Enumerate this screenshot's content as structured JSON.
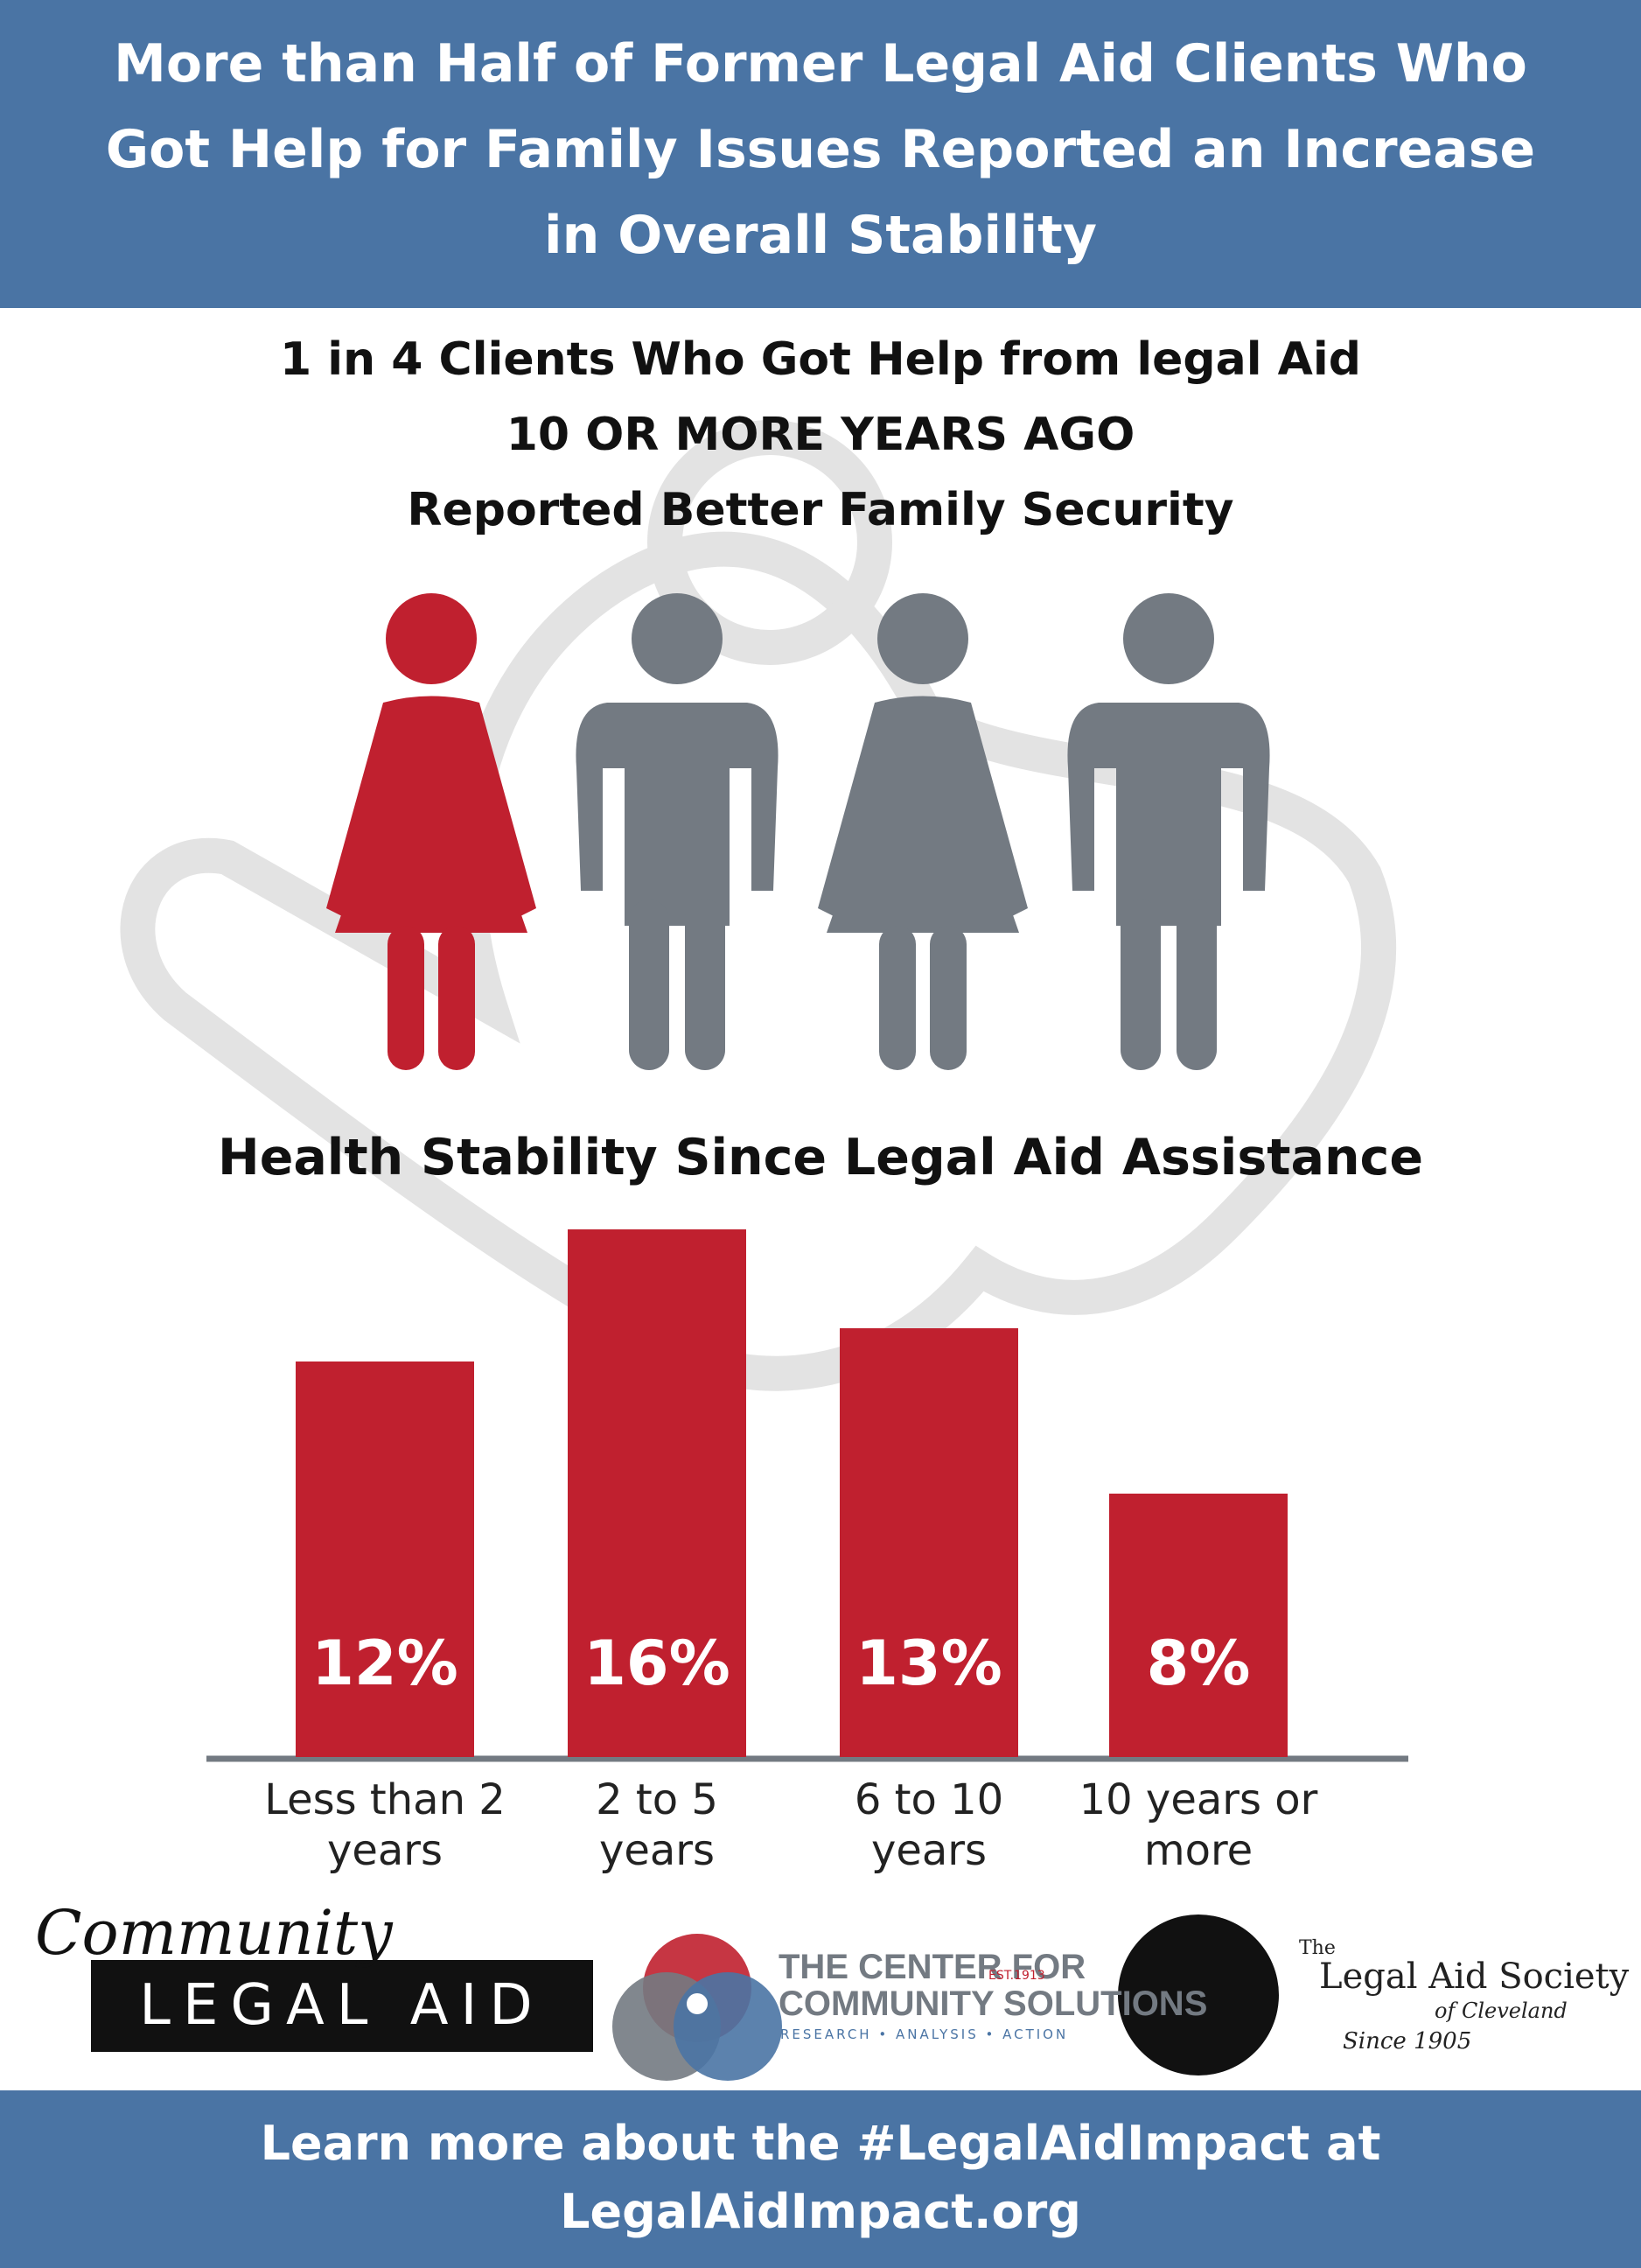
{
  "header": {
    "title": "More than Half of Former Legal Aid Clients Who Got Help for Family Issues Reported an Increase in Overall Stability"
  },
  "highlight": {
    "lines": [
      "1 in 4 Clients Who Got Help from legal Aid",
      "10 OR MORE YEARS AGO",
      "Reported Better Family Security"
    ]
  },
  "chart_data": {
    "type": "bar",
    "title": "Health Stability Since Legal Aid Assistance",
    "categories": [
      "Less than 2 years",
      "2 to 5 years",
      "6 to 10 years",
      "10 years or more"
    ],
    "values": [
      12,
      16,
      13,
      8
    ],
    "value_labels": [
      "12%",
      "16%",
      "13%",
      "8%"
    ],
    "color": "#c0202f"
  },
  "logos": {
    "community": [
      "Community",
      "LEGAL AID"
    ],
    "center": [
      "THE CENTER FOR",
      "COMMUNITY SOLUTIONS",
      "EST.1913",
      "RESEARCH • ANALYSIS • ACTION"
    ],
    "society": [
      "The",
      "Legal Aid Society",
      "of Cleveland",
      "Since 1905"
    ]
  },
  "footer": {
    "lines": [
      "Learn more about the #LegalAidImpact at",
      "LegalAidImpact.org"
    ]
  }
}
